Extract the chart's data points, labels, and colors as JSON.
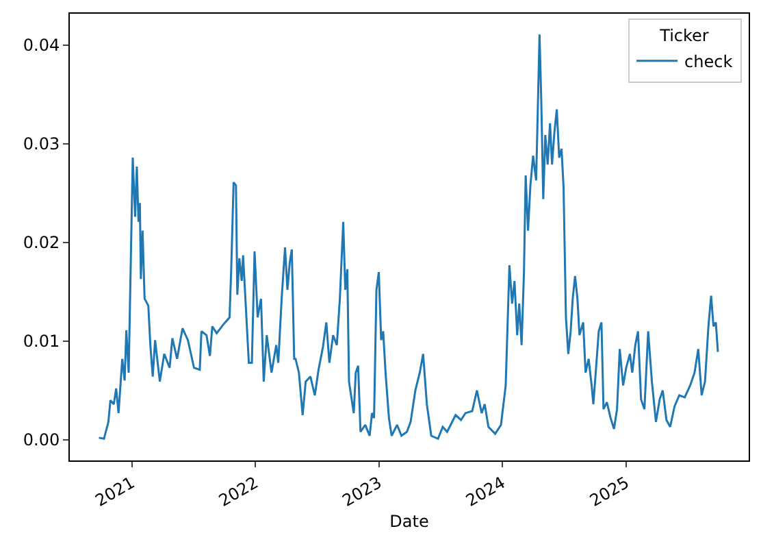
{
  "chart_data": {
    "type": "line",
    "xlabel": "Date",
    "legend_title": "Ticker",
    "legend": "top right",
    "line_style": "solid",
    "marker": "none",
    "xlim": [
      "2020-07-02",
      "2025-12-29"
    ],
    "xticks": [
      {
        "value": "2021-01-01",
        "label": "2021"
      },
      {
        "value": "2022-01-01",
        "label": "2022"
      },
      {
        "value": "2023-01-01",
        "label": "2023"
      },
      {
        "value": "2024-01-01",
        "label": "2024"
      },
      {
        "value": "2025-01-01",
        "label": "2025"
      }
    ],
    "ylim": [
      -0.0021,
      0.0432
    ],
    "yticks": [
      {
        "value": 0,
        "label": "0.00"
      },
      {
        "value": 0.01,
        "label": "0.01"
      },
      {
        "value": 0.02,
        "label": "0.02"
      },
      {
        "value": 0.03,
        "label": "0.03"
      },
      {
        "value": 0.04,
        "label": "0.04"
      }
    ],
    "series": [
      {
        "name": "check",
        "color": "#1f77b4",
        "x": [
          "2020-09-26",
          "2020-10-11",
          "2020-10-24",
          "2020-10-30",
          "2020-11-09",
          "2020-11-16",
          "2020-11-23",
          "2020-12-04",
          "2020-12-11",
          "2020-12-16",
          "2020-12-23",
          "2021-01-04",
          "2021-01-11",
          "2021-01-16",
          "2021-01-21",
          "2021-01-25",
          "2021-01-28",
          "2021-02-02",
          "2021-02-08",
          "2021-02-19",
          "2021-02-25",
          "2021-03-04",
          "2021-03-11",
          "2021-03-25",
          "2021-04-07",
          "2021-04-23",
          "2021-05-01",
          "2021-05-15",
          "2021-05-31",
          "2021-06-16",
          "2021-07-04",
          "2021-07-21",
          "2021-07-26",
          "2021-08-10",
          "2021-08-20",
          "2021-08-27",
          "2021-09-09",
          "2021-09-29",
          "2021-10-17",
          "2021-10-22",
          "2021-10-29",
          "2021-11-05",
          "2021-11-09",
          "2021-11-15",
          "2021-11-22",
          "2021-11-26",
          "2021-12-13",
          "2021-12-22",
          "2021-12-30",
          "2022-01-08",
          "2022-01-18",
          "2022-01-26",
          "2022-02-04",
          "2022-02-18",
          "2022-03-04",
          "2022-03-10",
          "2022-03-20",
          "2022-03-30",
          "2022-04-06",
          "2022-04-13",
          "2022-04-19",
          "2022-04-26",
          "2022-04-30",
          "2022-05-10",
          "2022-05-21",
          "2022-05-30",
          "2022-06-13",
          "2022-06-26",
          "2022-07-07",
          "2022-07-20",
          "2022-07-30",
          "2022-08-08",
          "2022-08-19",
          "2022-08-30",
          "2022-09-08",
          "2022-09-18",
          "2022-09-24",
          "2022-09-30",
          "2022-10-05",
          "2022-10-19",
          "2022-10-25",
          "2022-11-01",
          "2022-11-08",
          "2022-11-22",
          "2022-12-05",
          "2022-12-12",
          "2022-12-18",
          "2022-12-25",
          "2023-01-01",
          "2023-01-08",
          "2023-01-14",
          "2023-01-21",
          "2023-01-31",
          "2023-02-08",
          "2023-02-24",
          "2023-03-09",
          "2023-03-25",
          "2023-04-05",
          "2023-04-19",
          "2023-05-02",
          "2023-05-12",
          "2023-05-23",
          "2023-06-05",
          "2023-06-25",
          "2023-07-09",
          "2023-07-22",
          "2023-08-16",
          "2023-09-01",
          "2023-09-14",
          "2023-10-04",
          "2023-10-18",
          "2023-11-01",
          "2023-11-10",
          "2023-11-21",
          "2023-12-11",
          "2023-12-28",
          "2024-01-11",
          "2024-01-22",
          "2024-01-30",
          "2024-02-06",
          "2024-02-14",
          "2024-02-20",
          "2024-02-27",
          "2024-03-05",
          "2024-03-10",
          "2024-03-17",
          "2024-03-24",
          "2024-04-01",
          "2024-04-10",
          "2024-04-20",
          "2024-04-25",
          "2024-05-01",
          "2024-05-07",
          "2024-05-14",
          "2024-05-21",
          "2024-05-27",
          "2024-06-03",
          "2024-06-10",
          "2024-06-17",
          "2024-06-24",
          "2024-06-30",
          "2024-07-07",
          "2024-07-14",
          "2024-07-21",
          "2024-07-27",
          "2024-08-03",
          "2024-08-10",
          "2024-08-16",
          "2024-08-27",
          "2024-09-03",
          "2024-09-12",
          "2024-09-21",
          "2024-09-26",
          "2024-10-03",
          "2024-10-12",
          "2024-10-20",
          "2024-10-26",
          "2024-11-05",
          "2024-11-16",
          "2024-11-26",
          "2024-12-05",
          "2024-12-13",
          "2024-12-23",
          "2025-01-01",
          "2025-01-12",
          "2025-01-19",
          "2025-01-28",
          "2025-02-05",
          "2025-02-14",
          "2025-02-24",
          "2025-03-07",
          "2025-03-18",
          "2025-03-30",
          "2025-04-10",
          "2025-04-19",
          "2025-04-30",
          "2025-05-11",
          "2025-05-24",
          "2025-06-07",
          "2025-06-23",
          "2025-07-09",
          "2025-07-22",
          "2025-08-02",
          "2025-08-12",
          "2025-08-22",
          "2025-09-01",
          "2025-09-09",
          "2025-09-16",
          "2025-09-23",
          "2025-09-29"
        ],
        "values": [
          0.0002,
          0.0001,
          0.0018,
          0.004,
          0.0036,
          0.0052,
          0.0027,
          0.0082,
          0.006,
          0.0111,
          0.0068,
          0.0286,
          0.0226,
          0.0277,
          0.0221,
          0.024,
          0.0163,
          0.0212,
          0.0143,
          0.0136,
          0.0096,
          0.0064,
          0.0101,
          0.0059,
          0.0087,
          0.0073,
          0.0103,
          0.0082,
          0.0113,
          0.0101,
          0.0073,
          0.0071,
          0.011,
          0.0106,
          0.0085,
          0.0115,
          0.0108,
          0.0117,
          0.0124,
          0.0173,
          0.0261,
          0.0258,
          0.0147,
          0.0184,
          0.0161,
          0.0187,
          0.0078,
          0.0078,
          0.0191,
          0.0124,
          0.0143,
          0.0059,
          0.0106,
          0.0068,
          0.0096,
          0.0078,
          0.0143,
          0.0195,
          0.0152,
          0.018,
          0.0193,
          0.0082,
          0.0082,
          0.0068,
          0.0025,
          0.0059,
          0.0064,
          0.0045,
          0.0071,
          0.0094,
          0.0119,
          0.0078,
          0.0106,
          0.0096,
          0.0143,
          0.0221,
          0.0152,
          0.0173,
          0.0059,
          0.0027,
          0.0068,
          0.0075,
          0.0008,
          0.0015,
          0.0004,
          0.0027,
          0.0022,
          0.0152,
          0.017,
          0.0101,
          0.011,
          0.0068,
          0.0022,
          0.0004,
          0.0015,
          0.0004,
          0.0008,
          0.0018,
          0.005,
          0.0068,
          0.0087,
          0.0036,
          0.0004,
          0.0001,
          0.0013,
          0.0008,
          0.0025,
          0.002,
          0.0027,
          0.0029,
          0.005,
          0.0027,
          0.0036,
          0.0013,
          0.0006,
          0.0015,
          0.0055,
          0.0177,
          0.0138,
          0.0161,
          0.0106,
          0.0138,
          0.0096,
          0.017,
          0.0268,
          0.0212,
          0.0258,
          0.0288,
          0.0263,
          0.0411,
          0.0346,
          0.0244,
          0.0309,
          0.0279,
          0.0321,
          0.0279,
          0.0312,
          0.0335,
          0.0286,
          0.0295,
          0.0256,
          0.0124,
          0.0087,
          0.011,
          0.0143,
          0.0166,
          0.0143,
          0.0106,
          0.0119,
          0.0068,
          0.0082,
          0.0055,
          0.0036,
          0.0068,
          0.011,
          0.0119,
          0.0031,
          0.0038,
          0.0022,
          0.0011,
          0.0031,
          0.0092,
          0.0055,
          0.0073,
          0.0087,
          0.0068,
          0.0096,
          0.011,
          0.0041,
          0.0031,
          0.011,
          0.0059,
          0.0018,
          0.0041,
          0.005,
          0.002,
          0.0013,
          0.0034,
          0.0045,
          0.0043,
          0.0055,
          0.0068,
          0.0092,
          0.0045,
          0.0059,
          0.0115,
          0.0146,
          0.0115,
          0.0119,
          0.0089
        ]
      }
    ]
  }
}
